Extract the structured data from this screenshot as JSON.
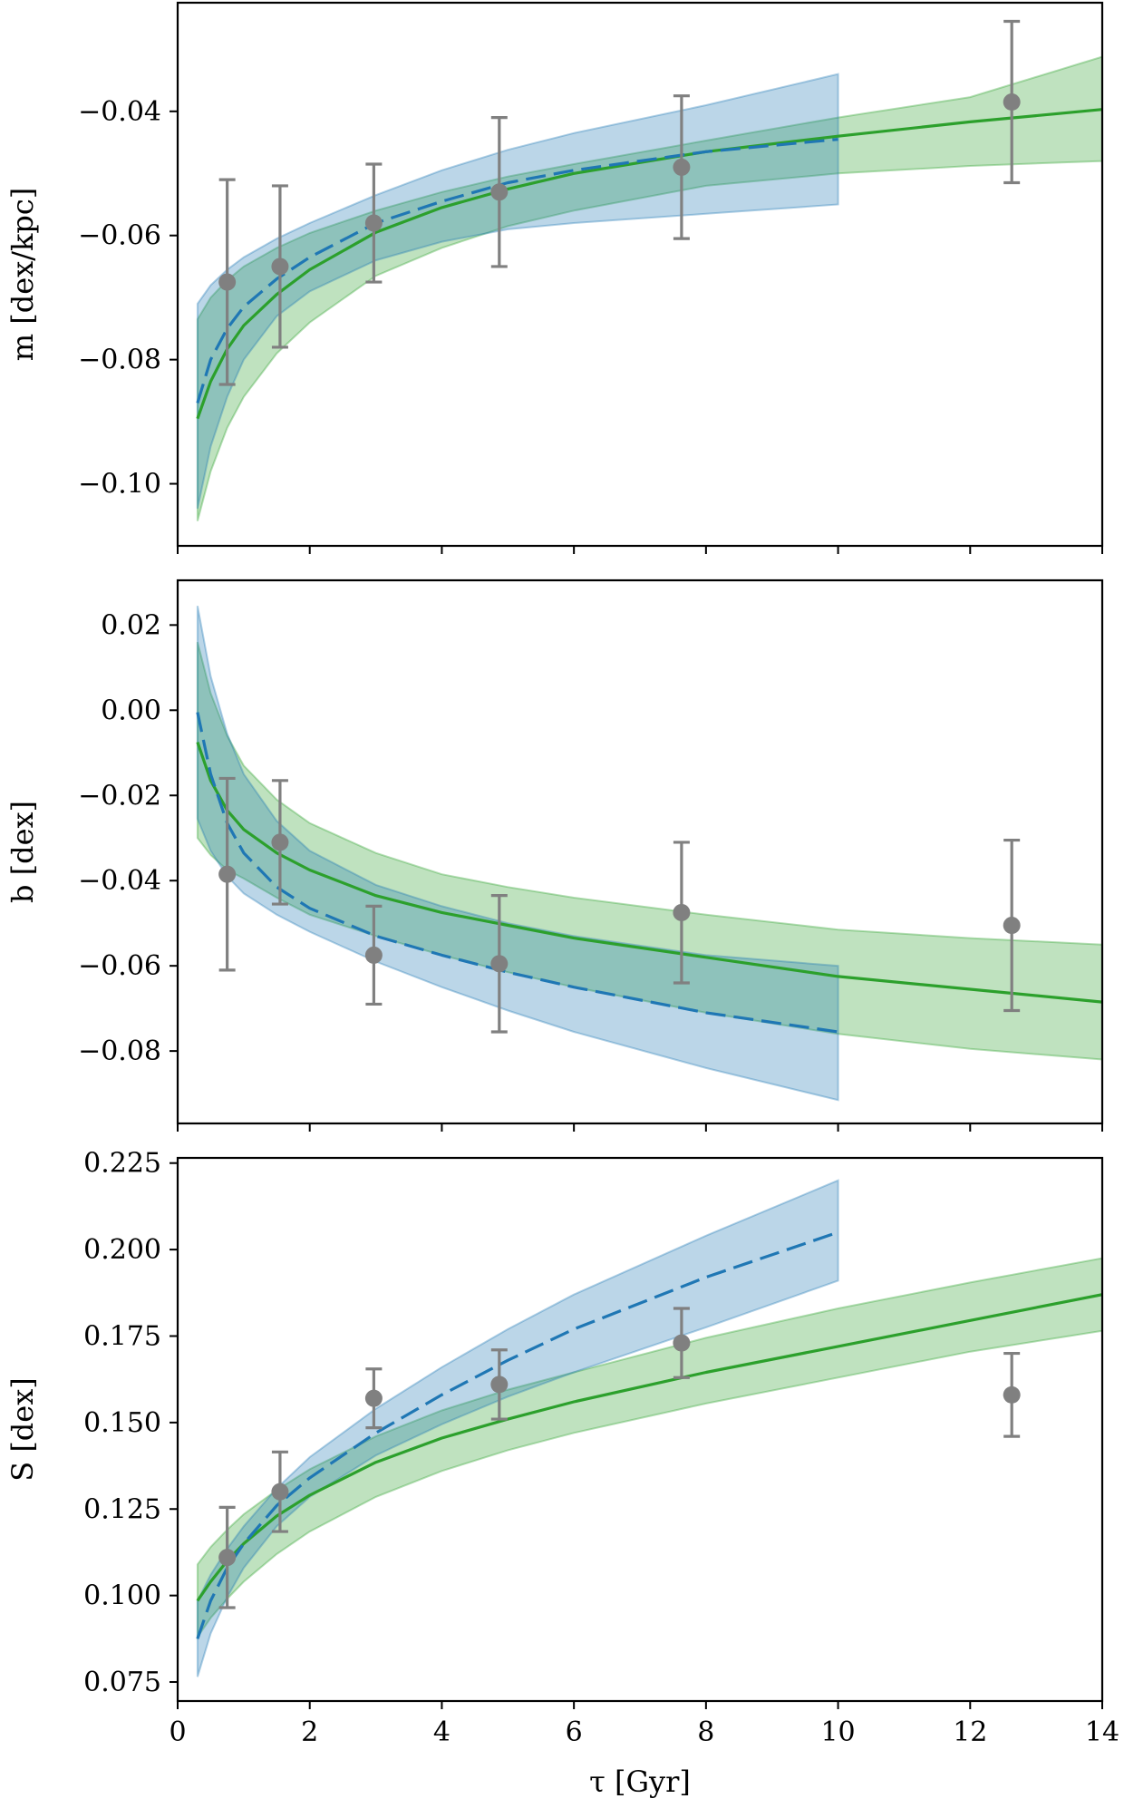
{
  "colors": {
    "data_points": "#808080",
    "model_green": "#2ca02c",
    "model_blue": "#1f77b4",
    "band_green": "#2ca02c",
    "band_blue": "#1f77b4"
  },
  "chart_data": [
    {
      "type": "line",
      "id": "panel_m",
      "ylabel": "m [dex/kpc]",
      "xlabel": "",
      "xlim": [
        0,
        14
      ],
      "ylim": [
        -0.11,
        -0.0225
      ],
      "xticks": [
        0,
        2,
        4,
        6,
        8,
        10,
        12,
        14
      ],
      "xtick_labels_shown": false,
      "yticks": [
        -0.1,
        -0.08,
        -0.06,
        -0.04
      ],
      "ytick_labels": [
        "−0.10",
        "−0.08",
        "−0.06",
        "−0.04"
      ],
      "observed": {
        "x": [
          0.75,
          1.55,
          2.97,
          4.87,
          7.63,
          12.63
        ],
        "y": [
          -0.0675,
          -0.065,
          -0.058,
          -0.053,
          -0.049,
          -0.0385
        ],
        "yerr": [
          0.0165,
          0.013,
          0.0095,
          0.012,
          0.0115,
          0.013
        ]
      },
      "series": [
        {
          "name": "green_fit",
          "style": "solid",
          "x_range": [
            0.3,
            14
          ],
          "x": [
            0.3,
            0.5,
            0.75,
            1.0,
            1.5,
            2,
            3,
            4,
            5,
            6,
            8,
            10,
            12,
            14
          ],
          "y": [
            -0.0895,
            -0.0835,
            -0.0783,
            -0.0745,
            -0.0695,
            -0.0655,
            -0.0595,
            -0.0555,
            -0.0525,
            -0.05,
            -0.0465,
            -0.044,
            -0.0417,
            -0.0397
          ],
          "upper": [
            -0.0735,
            -0.07,
            -0.0672,
            -0.065,
            -0.062,
            -0.0596,
            -0.056,
            -0.053,
            -0.0505,
            -0.0485,
            -0.0447,
            -0.041,
            -0.0377,
            -0.0312
          ],
          "lower": [
            -0.106,
            -0.098,
            -0.091,
            -0.086,
            -0.079,
            -0.074,
            -0.0665,
            -0.062,
            -0.0585,
            -0.056,
            -0.052,
            -0.05,
            -0.0488,
            -0.048
          ]
        },
        {
          "name": "blue_fit",
          "style": "dashed",
          "x_range": [
            0.3,
            10
          ],
          "x": [
            0.3,
            0.5,
            0.75,
            1.0,
            1.5,
            2,
            3,
            4,
            5,
            6,
            8,
            10
          ],
          "y": [
            -0.087,
            -0.08,
            -0.075,
            -0.0715,
            -0.067,
            -0.0635,
            -0.058,
            -0.0545,
            -0.0515,
            -0.0495,
            -0.0465,
            -0.0445
          ],
          "upper": [
            -0.071,
            -0.068,
            -0.0655,
            -0.0635,
            -0.0605,
            -0.058,
            -0.0535,
            -0.0495,
            -0.0462,
            -0.0435,
            -0.039,
            -0.034
          ],
          "lower": [
            -0.104,
            -0.094,
            -0.086,
            -0.08,
            -0.073,
            -0.069,
            -0.064,
            -0.061,
            -0.059,
            -0.058,
            -0.0565,
            -0.055
          ]
        }
      ]
    },
    {
      "type": "line",
      "id": "panel_b",
      "ylabel": "b [dex]",
      "xlabel": "",
      "xlim": [
        0,
        14
      ],
      "ylim": [
        -0.097,
        0.0305
      ],
      "xticks": [
        0,
        2,
        4,
        6,
        8,
        10,
        12,
        14
      ],
      "xtick_labels_shown": false,
      "yticks": [
        -0.08,
        -0.06,
        -0.04,
        -0.02,
        0.0,
        0.02
      ],
      "ytick_labels": [
        "−0.08",
        "−0.06",
        "−0.04",
        "−0.02",
        "0.00",
        "0.02"
      ],
      "observed": {
        "x": [
          0.75,
          1.55,
          2.97,
          4.87,
          7.63,
          12.63
        ],
        "y": [
          -0.0385,
          -0.031,
          -0.0575,
          -0.0595,
          -0.0475,
          -0.0505
        ],
        "yerr": [
          0.0225,
          0.0145,
          0.0115,
          0.016,
          0.0165,
          0.02
        ]
      },
      "series": [
        {
          "name": "green_fit",
          "style": "solid",
          "x_range": [
            0.3,
            14
          ],
          "x": [
            0.3,
            0.5,
            0.75,
            1.0,
            1.5,
            2,
            3,
            4,
            5,
            6,
            8,
            10,
            12,
            14
          ],
          "y": [
            -0.0075,
            -0.0165,
            -0.0235,
            -0.028,
            -0.0335,
            -0.0375,
            -0.0435,
            -0.0475,
            -0.0505,
            -0.0535,
            -0.058,
            -0.0625,
            -0.0655,
            -0.0685
          ],
          "upper": [
            0.016,
            0.004,
            -0.006,
            -0.013,
            -0.021,
            -0.0265,
            -0.0335,
            -0.0385,
            -0.0415,
            -0.044,
            -0.048,
            -0.0515,
            -0.0535,
            -0.055
          ],
          "lower": [
            -0.03,
            -0.034,
            -0.0375,
            -0.0395,
            -0.044,
            -0.048,
            -0.053,
            -0.0575,
            -0.0615,
            -0.065,
            -0.071,
            -0.076,
            -0.0795,
            -0.082
          ]
        },
        {
          "name": "blue_fit",
          "style": "dashed",
          "x_range": [
            0.3,
            10
          ],
          "x": [
            0.3,
            0.5,
            0.75,
            1.0,
            1.5,
            2,
            3,
            4,
            5,
            6,
            8,
            10
          ],
          "y": [
            -0.0005,
            -0.015,
            -0.0265,
            -0.0335,
            -0.0415,
            -0.0465,
            -0.053,
            -0.0575,
            -0.0615,
            -0.065,
            -0.071,
            -0.0755
          ],
          "upper": [
            0.0245,
            0.008,
            -0.0055,
            -0.015,
            -0.026,
            -0.033,
            -0.041,
            -0.046,
            -0.05,
            -0.053,
            -0.0575,
            -0.06
          ],
          "lower": [
            -0.0255,
            -0.033,
            -0.039,
            -0.043,
            -0.048,
            -0.052,
            -0.059,
            -0.065,
            -0.0705,
            -0.0755,
            -0.084,
            -0.0915
          ]
        }
      ]
    },
    {
      "type": "line",
      "id": "panel_s",
      "ylabel": "S [dex]",
      "xlabel": "τ [Gyr]",
      "xlim": [
        0,
        14
      ],
      "ylim": [
        0.0695,
        0.2265
      ],
      "xticks": [
        0,
        2,
        4,
        6,
        8,
        10,
        12,
        14
      ],
      "xtick_labels": [
        "0",
        "2",
        "4",
        "6",
        "8",
        "10",
        "12",
        "14"
      ],
      "xtick_labels_shown": true,
      "yticks": [
        0.075,
        0.1,
        0.125,
        0.15,
        0.175,
        0.2,
        0.225
      ],
      "ytick_labels": [
        "0.075",
        "0.100",
        "0.125",
        "0.150",
        "0.175",
        "0.200",
        "0.225"
      ],
      "observed": {
        "x": [
          0.75,
          1.55,
          2.97,
          4.87,
          7.63,
          12.63
        ],
        "y": [
          0.111,
          0.13,
          0.157,
          0.161,
          0.173,
          0.158
        ],
        "yerr": [
          0.0145,
          0.0115,
          0.0085,
          0.01,
          0.01,
          0.012
        ]
      },
      "series": [
        {
          "name": "green_fit",
          "style": "solid",
          "x_range": [
            0.3,
            14
          ],
          "x": [
            0.3,
            0.5,
            0.75,
            1.0,
            1.5,
            2,
            3,
            4,
            5,
            6,
            8,
            10,
            12,
            14
          ],
          "y": [
            0.0985,
            0.104,
            0.11,
            0.115,
            0.123,
            0.129,
            0.1385,
            0.1455,
            0.151,
            0.156,
            0.1645,
            0.172,
            0.1795,
            0.187
          ],
          "upper": [
            0.109,
            0.114,
            0.119,
            0.1235,
            0.1305,
            0.1365,
            0.146,
            0.1535,
            0.1595,
            0.1645,
            0.1745,
            0.183,
            0.1905,
            0.1975
          ],
          "lower": [
            0.088,
            0.0935,
            0.099,
            0.104,
            0.112,
            0.1185,
            0.1285,
            0.136,
            0.142,
            0.147,
            0.1555,
            0.163,
            0.1705,
            0.1765
          ]
        },
        {
          "name": "blue_fit",
          "style": "dashed",
          "x_range": [
            0.3,
            10
          ],
          "x": [
            0.3,
            0.5,
            0.75,
            1.0,
            1.5,
            2,
            3,
            4,
            5,
            6,
            8,
            10
          ],
          "y": [
            0.0875,
            0.0985,
            0.108,
            0.115,
            0.126,
            0.134,
            0.147,
            0.158,
            0.168,
            0.177,
            0.192,
            0.205
          ],
          "upper": [
            0.0985,
            0.106,
            0.1135,
            0.12,
            0.131,
            0.14,
            0.154,
            0.166,
            0.177,
            0.187,
            0.204,
            0.22
          ],
          "lower": [
            0.0765,
            0.089,
            0.0995,
            0.108,
            0.12,
            0.1285,
            0.1405,
            0.1495,
            0.1575,
            0.1645,
            0.1775,
            0.191
          ]
        }
      ]
    }
  ]
}
